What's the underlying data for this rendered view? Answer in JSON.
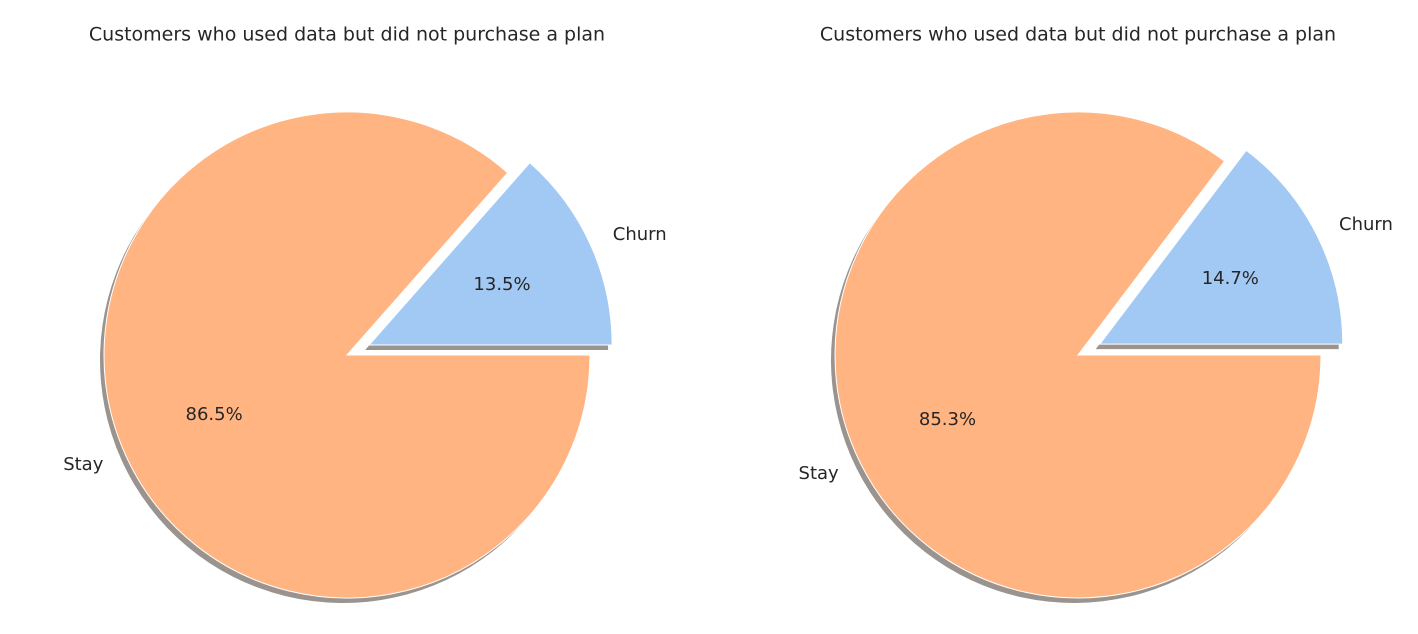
{
  "chart_data": [
    {
      "type": "pie",
      "title": "Customers who used data but did not purchase a plan",
      "categories": [
        "Churn",
        "Stay"
      ],
      "values": [
        13.5,
        86.5
      ],
      "value_labels": [
        "13.5%",
        "86.5%"
      ],
      "colors": [
        "#a1c9f4",
        "#ffb482"
      ]
    },
    {
      "type": "pie",
      "title": "Customers who used data but did not purchase a plan",
      "categories": [
        "Churn",
        "Stay"
      ],
      "values": [
        14.7,
        85.3
      ],
      "value_labels": [
        "14.7%",
        "85.3%"
      ],
      "colors": [
        "#a1c9f4",
        "#ffb482"
      ]
    }
  ]
}
